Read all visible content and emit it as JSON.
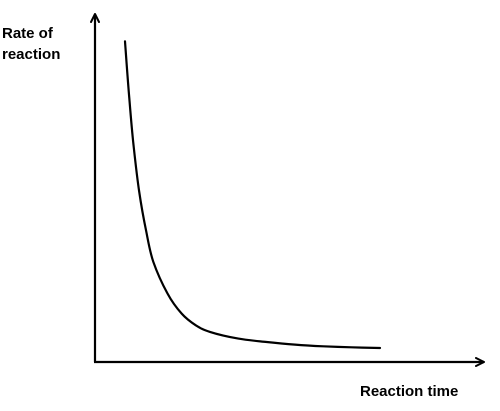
{
  "chart_data": {
    "type": "line",
    "title": "",
    "ylabel_lines": [
      "Rate of",
      "reaction"
    ],
    "xlabel": "Reaction time",
    "ticks": "none",
    "grid": false,
    "legend": "none",
    "xlim": [
      0,
      10
    ],
    "ylim": [
      0,
      10
    ],
    "series": [
      {
        "x": [
          0.0,
          0.15,
          0.3,
          0.5,
          0.75,
          1.0,
          1.5,
          2.0,
          2.5,
          3.0,
          4.0,
          5.0,
          6.0,
          7.0,
          8.0,
          9.0
        ],
        "y": [
          9.6,
          7.9,
          6.5,
          5.1,
          3.9,
          3.0,
          2.05,
          1.45,
          1.1,
          0.9,
          0.7,
          0.6,
          0.52,
          0.47,
          0.44,
          0.42
        ]
      }
    ],
    "colors": {
      "line": "#000000",
      "axis": "#000000",
      "background": "#ffffff"
    }
  }
}
